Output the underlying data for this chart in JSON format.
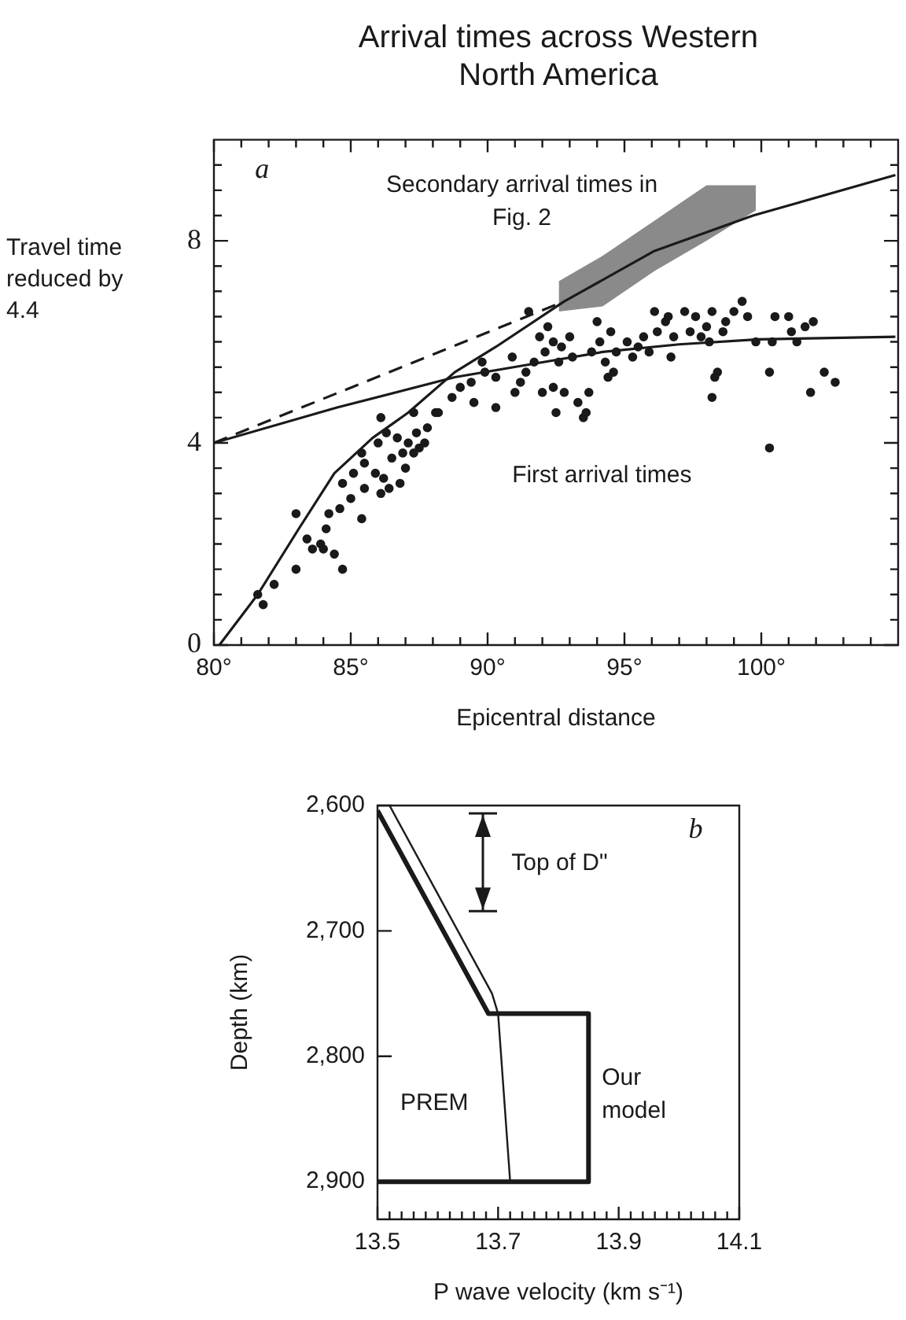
{
  "chart_data": [
    {
      "type": "scatter",
      "title": "Arrival times across Western North America",
      "xlabel": "Epicentral distance",
      "ylabel": "Travel time reduced by 4.4",
      "xlim": [
        80,
        105
      ],
      "ylim": [
        0,
        10
      ],
      "xticks": [
        {
          "value": 80,
          "label": "80°"
        },
        {
          "value": 81,
          "label": null
        },
        {
          "value": 82,
          "label": null
        },
        {
          "value": 83,
          "label": null
        },
        {
          "value": 84,
          "label": null
        },
        {
          "value": 85,
          "label": "85°"
        },
        {
          "value": 86,
          "label": null
        },
        {
          "value": 87,
          "label": null
        },
        {
          "value": 88,
          "label": null
        },
        {
          "value": 89,
          "label": null
        },
        {
          "value": 90,
          "label": "90°"
        },
        {
          "value": 91,
          "label": null
        },
        {
          "value": 92,
          "label": null
        },
        {
          "value": 93,
          "label": null
        },
        {
          "value": 94,
          "label": null
        },
        {
          "value": 95,
          "label": "95°"
        },
        {
          "value": 96,
          "label": null
        },
        {
          "value": 97,
          "label": null
        },
        {
          "value": 98,
          "label": null
        },
        {
          "value": 99,
          "label": null
        },
        {
          "value": 100,
          "label": "100°"
        },
        {
          "value": 101,
          "label": null
        },
        {
          "value": 102,
          "label": null
        },
        {
          "value": 103,
          "label": null
        },
        {
          "value": 104,
          "label": null
        }
      ],
      "yticks": [
        0,
        {
          "value": 0.5,
          "label": null
        },
        {
          "value": 1,
          "label": null
        },
        {
          "value": 1.5,
          "label": null
        },
        {
          "value": 2,
          "label": null
        },
        {
          "value": 2.5,
          "label": null
        },
        {
          "value": 3,
          "label": null
        },
        {
          "value": 3.5,
          "label": null
        },
        4,
        {
          "value": 4.5,
          "label": null
        },
        {
          "value": 5,
          "label": null
        },
        {
          "value": 5.5,
          "label": null
        },
        {
          "value": 6,
          "label": null
        },
        {
          "value": 6.5,
          "label": null
        },
        {
          "value": 7,
          "label": null
        },
        {
          "value": 7.5,
          "label": null
        },
        8,
        {
          "value": 8.5,
          "label": null
        },
        {
          "value": 9,
          "label": null
        },
        {
          "value": 9.5,
          "label": null
        }
      ],
      "grid": false,
      "legend": false,
      "annotations": [
        "a",
        "Secondary arrival times in Fig. 2"
      ],
      "series": [
        {
          "name": "First arrival times",
          "type": "scatter",
          "marker": "circle",
          "color": "#1a1a1a",
          "x": [
            81.6,
            81.8,
            82.2,
            83.0,
            83.0,
            83.4,
            83.6,
            83.9,
            84.0,
            84.1,
            84.4,
            84.7,
            84.2,
            84.6,
            84.7,
            85.0,
            85.1,
            85.4,
            85.4,
            85.5,
            85.5,
            85.9,
            86.0,
            86.1,
            86.1,
            86.2,
            86.3,
            86.4,
            86.5,
            86.7,
            86.8,
            86.9,
            87.0,
            87.1,
            87.3,
            87.3,
            87.4,
            87.5,
            87.7,
            87.8,
            88.1,
            88.2,
            88.7,
            89.0,
            89.4,
            89.5,
            89.8,
            89.9,
            90.3,
            90.3,
            90.9,
            91.0,
            91.2,
            91.4,
            91.5,
            91.7,
            91.9,
            92.0,
            92.1,
            92.2,
            92.4,
            92.4,
            92.5,
            92.6,
            92.7,
            92.8,
            93.0,
            93.1,
            93.3,
            93.5,
            93.6,
            93.7,
            93.8,
            94.0,
            94.1,
            94.3,
            94.4,
            94.5,
            94.6,
            94.7,
            95.1,
            95.3,
            95.5,
            95.7,
            95.9,
            96.1,
            96.2,
            96.5,
            96.6,
            96.7,
            96.8,
            97.2,
            97.4,
            97.6,
            97.8,
            98.0,
            98.1,
            98.2,
            98.3,
            98.2,
            98.4,
            98.6,
            98.7,
            99.0,
            99.3,
            99.5,
            99.8,
            100.3,
            100.4,
            100.3,
            100.5,
            101.0,
            101.1,
            101.3,
            101.6,
            101.8,
            101.9,
            102.3,
            102.7
          ],
          "values": [
            1.0,
            0.8,
            1.2,
            2.6,
            1.5,
            2.1,
            1.9,
            2.0,
            1.9,
            2.3,
            1.8,
            1.5,
            2.6,
            2.7,
            3.2,
            2.9,
            3.4,
            3.8,
            2.5,
            3.1,
            3.6,
            3.4,
            4.0,
            4.5,
            3.0,
            3.3,
            4.2,
            3.1,
            3.7,
            4.1,
            3.2,
            3.8,
            3.5,
            4.0,
            4.6,
            3.8,
            4.2,
            3.9,
            4.0,
            4.3,
            4.6,
            4.6,
            4.9,
            5.1,
            5.2,
            4.8,
            5.6,
            5.4,
            5.3,
            4.7,
            5.7,
            5.0,
            5.2,
            5.4,
            6.6,
            5.6,
            6.1,
            5.0,
            5.8,
            6.3,
            6.0,
            5.1,
            4.6,
            5.6,
            5.9,
            5.0,
            6.1,
            5.7,
            4.8,
            4.5,
            4.6,
            5.0,
            5.8,
            6.4,
            6.0,
            5.6,
            5.3,
            6.2,
            5.4,
            5.8,
            6.0,
            5.7,
            5.9,
            6.1,
            5.8,
            6.6,
            6.2,
            6.4,
            6.5,
            5.7,
            6.1,
            6.6,
            6.2,
            6.5,
            6.1,
            6.3,
            6.0,
            6.6,
            5.3,
            4.9,
            5.4,
            6.2,
            6.4,
            6.6,
            6.8,
            6.5,
            6.0,
            5.4,
            6.0,
            3.9,
            6.5,
            6.5,
            6.2,
            6.0,
            6.3,
            5.0,
            6.4,
            5.4,
            5.2
          ]
        },
        {
          "type": "line",
          "marker": "none",
          "line_style": "solid",
          "color": "#1a1a1a",
          "x": [
            80.2,
            81.6,
            83.1,
            84.4,
            85.8,
            87.1,
            88.8,
            90.3,
            92.8,
            96.1,
            99.7,
            104.9
          ],
          "values": [
            0,
            1.0,
            2.3,
            3.4,
            4.1,
            4.6,
            5.4,
            5.9,
            6.8,
            7.8,
            8.5,
            9.3
          ]
        },
        {
          "type": "line",
          "marker": "none",
          "line_style": "solid",
          "color": "#1a1a1a",
          "x": [
            80,
            84.5,
            88.8,
            91.5,
            94.2,
            97.0,
            99.9,
            104.9
          ],
          "values": [
            4.0,
            4.7,
            5.3,
            5.55,
            5.8,
            5.95,
            6.05,
            6.1
          ]
        },
        {
          "type": "line",
          "marker": "none",
          "line_style": "dashed",
          "color": "#1a1a1a",
          "x": [
            80,
            92.8
          ],
          "values": [
            4.0,
            6.8
          ]
        },
        {
          "type": "area",
          "color": "#8a8a8a",
          "x": [
            92.6,
            94.2,
            96.1,
            98.0,
            99.8
          ],
          "values": [
            null,
            null,
            null,
            null,
            null
          ],
          "lower": [
            6.6,
            6.7,
            7.4,
            8.0,
            8.6
          ],
          "upper": [
            7.2,
            7.7,
            8.4,
            9.1,
            9.1
          ]
        }
      ]
    },
    {
      "type": "line",
      "xlabel": "P wave velocity (km s⁻¹)",
      "ylabel": "Depth (km)",
      "xlim": [
        13.5,
        14.1
      ],
      "ylim": [
        2930,
        2600
      ],
      "xticks": [
        13.5,
        {
          "value": 13.52,
          "label": null
        },
        {
          "value": 13.54,
          "label": null
        },
        {
          "value": 13.56,
          "label": null
        },
        {
          "value": 13.58,
          "label": null
        },
        {
          "value": 13.6,
          "label": null
        },
        {
          "value": 13.62,
          "label": null
        },
        {
          "value": 13.64,
          "label": null
        },
        {
          "value": 13.66,
          "label": null
        },
        {
          "value": 13.68,
          "label": null
        },
        13.7,
        {
          "value": 13.72,
          "label": null
        },
        {
          "value": 13.74,
          "label": null
        },
        {
          "value": 13.76,
          "label": null
        },
        {
          "value": 13.78,
          "label": null
        },
        {
          "value": 13.8,
          "label": null
        },
        {
          "value": 13.82,
          "label": null
        },
        {
          "value": 13.84,
          "label": null
        },
        {
          "value": 13.86,
          "label": null
        },
        {
          "value": 13.88,
          "label": null
        },
        13.9,
        {
          "value": 13.92,
          "label": null
        },
        {
          "value": 13.94,
          "label": null
        },
        {
          "value": 13.96,
          "label": null
        },
        {
          "value": 13.98,
          "label": null
        },
        {
          "value": 14.0,
          "label": null
        },
        {
          "value": 14.02,
          "label": null
        },
        {
          "value": 14.04,
          "label": null
        },
        {
          "value": 14.06,
          "label": null
        },
        {
          "value": 14.08,
          "label": null
        },
        14.1
      ],
      "yticks": [
        {
          "value": 2600,
          "label": "2,600"
        },
        {
          "value": 2700,
          "label": "2,700"
        },
        {
          "value": 2800,
          "label": "2,800"
        },
        {
          "value": 2900,
          "label": "2,900"
        }
      ],
      "grid": false,
      "legend": false,
      "marker": "none",
      "line_style": "solid",
      "annotations": [
        "b",
        "Top of D\""
      ],
      "series": [
        {
          "name": "PREM",
          "color": "#1a1a1a",
          "x": [
            13.52,
            13.69,
            13.7,
            13.72
          ],
          "values": [
            2600,
            2750,
            2766,
            2900
          ]
        },
        {
          "name": "Our model",
          "color": "#1a1a1a",
          "x": [
            13.5,
            13.684,
            13.85,
            13.85,
            13.5
          ],
          "values": [
            2604,
            2766,
            2766,
            2900,
            2900
          ]
        }
      ]
    }
  ]
}
